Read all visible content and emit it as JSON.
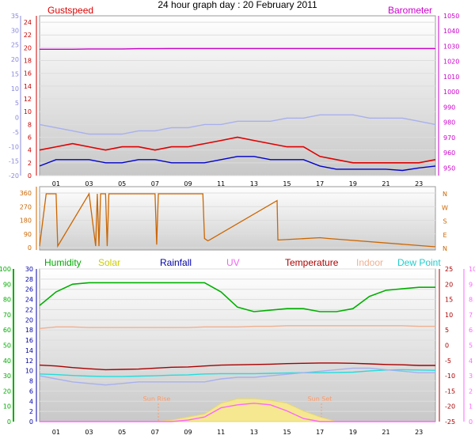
{
  "header": {
    "title": "24 hour graph day : 20 February 2011"
  },
  "chart_data": [
    {
      "type": "line",
      "title": "",
      "xlabel": "",
      "x_ticks": [
        "01",
        "03",
        "05",
        "07",
        "09",
        "11",
        "13",
        "15",
        "17",
        "19",
        "21",
        "23"
      ],
      "hours": [
        0,
        1,
        2,
        3,
        4,
        5,
        6,
        7,
        8,
        9,
        10,
        11,
        12,
        13,
        14,
        15,
        16,
        17,
        18,
        19,
        20,
        21,
        22,
        23,
        24
      ],
      "legend": [
        "Gustspeed",
        "Barometer"
      ],
      "left_axis": {
        "ticks": [
          0,
          2,
          4,
          6,
          8,
          10,
          12,
          14,
          16,
          18,
          20,
          22,
          24
        ],
        "ylim": [
          0,
          25
        ]
      },
      "left_axis_secondary": {
        "ticks": [
          -20,
          -15,
          -10,
          -5,
          0,
          5,
          10,
          15,
          20,
          25,
          30,
          35
        ]
      },
      "right_axis": {
        "ticks": [
          950,
          960,
          970,
          980,
          990,
          1000,
          1010,
          1020,
          1030,
          1040,
          1050
        ],
        "ylim": [
          945,
          1050
        ]
      },
      "series": [
        {
          "name": "Gustspeed",
          "axis": "left",
          "color": "#e00000",
          "values": [
            4,
            4.5,
            5,
            4.5,
            4,
            4.5,
            4.5,
            4,
            4.5,
            4.5,
            5,
            5.5,
            6,
            5.5,
            5,
            4.5,
            4.5,
            3,
            2.5,
            2,
            2,
            2,
            2,
            2,
            2.5
          ]
        },
        {
          "name": "Wind speed",
          "axis": "left",
          "color": "#0000cc",
          "values": [
            1.5,
            2.5,
            2.5,
            2.5,
            2,
            2,
            2.5,
            2.5,
            2,
            2,
            2,
            2.5,
            3,
            3,
            2.5,
            2.5,
            2.5,
            1.5,
            1,
            1,
            1,
            1,
            0.8,
            1.2,
            1.5
          ]
        },
        {
          "name": "Barometer",
          "axis": "right",
          "color": "#cc00cc",
          "values": [
            1028,
            1028,
            1028,
            1028.2,
            1028.2,
            1028.2,
            1028.4,
            1028.4,
            1028.5,
            1028.5,
            1028.5,
            1028.5,
            1028.5,
            1028.5,
            1028.5,
            1028.5,
            1028.5,
            1028.5,
            1028.5,
            1028.5,
            1028.5,
            1028.5,
            1028.5,
            1028.5,
            1028.5
          ]
        },
        {
          "name": "Pale blue trace",
          "axis": "left",
          "color": "#a8b0ee",
          "values": [
            8,
            7.5,
            7,
            6.5,
            6.5,
            6.5,
            7,
            7,
            7.5,
            7.5,
            8,
            8,
            8.5,
            8.5,
            8.5,
            9,
            9,
            9.5,
            9.5,
            9.5,
            9,
            9,
            9,
            8.5,
            8
          ]
        }
      ]
    },
    {
      "type": "line",
      "title": "",
      "x_ticks": [
        "01",
        "03",
        "05",
        "07",
        "09",
        "11",
        "13",
        "15",
        "17",
        "19",
        "21",
        "23"
      ],
      "hours": [
        0,
        0.4,
        0.5,
        1,
        1.1,
        3,
        3.4,
        3.5,
        3.6,
        3.7,
        4,
        4.1,
        4.2,
        7,
        7.1,
        7.2,
        9.9,
        10,
        10.2,
        10.3,
        14.4,
        14.45,
        14.5,
        17,
        17.5,
        24
      ],
      "left_axis": {
        "ticks": [
          0,
          90,
          180,
          270,
          360
        ],
        "ylim": [
          0,
          360
        ]
      },
      "right_axis": {
        "ticks": [
          "N",
          "W",
          "S",
          "E",
          "N"
        ]
      },
      "series": [
        {
          "name": "Wind direction",
          "color": "#cc6600",
          "values": [
            10,
            355,
            355,
            355,
            10,
            355,
            10,
            355,
            10,
            355,
            355,
            10,
            355,
            355,
            20,
            355,
            355,
            60,
            45,
            50,
            310,
            50,
            50,
            65,
            60,
            5
          ]
        }
      ]
    },
    {
      "type": "line",
      "title": "",
      "x_ticks": [
        "01",
        "03",
        "05",
        "07",
        "09",
        "11",
        "13",
        "15",
        "17",
        "19",
        "21",
        "23"
      ],
      "hours": [
        0,
        1,
        2,
        3,
        4,
        5,
        6,
        7,
        8,
        9,
        10,
        11,
        12,
        13,
        14,
        15,
        16,
        17,
        18,
        19,
        20,
        21,
        22,
        23,
        24
      ],
      "legend": [
        "Humidity",
        "Solar",
        "Rainfall",
        "UV",
        "Temperature",
        "Indoor",
        "Dew Point"
      ],
      "annotations": [
        "Sun Rise",
        "Sun Set"
      ],
      "axis_humidity": {
        "ticks": [
          0,
          10,
          20,
          30,
          40,
          50,
          60,
          70,
          80,
          90,
          100
        ],
        "ylim": [
          0,
          100
        ]
      },
      "axis_rainfall": {
        "ticks": [
          0,
          2,
          4,
          6,
          8,
          10,
          12,
          14,
          16,
          18,
          20,
          22,
          24,
          26,
          28,
          30
        ],
        "ylim": [
          0,
          30
        ]
      },
      "axis_temperature": {
        "ticks": [
          -25,
          -20,
          -15,
          -10,
          -5,
          0,
          5,
          10,
          15,
          20,
          25
        ],
        "ylim": [
          -25,
          25
        ]
      },
      "axis_uv": {
        "ticks": [
          0,
          1,
          2,
          3,
          4,
          5,
          6,
          7,
          8,
          9,
          10
        ],
        "ylim": [
          0,
          10
        ]
      },
      "series": [
        {
          "name": "Humidity",
          "axis": "humidity",
          "color": "#00b000",
          "values": [
            76,
            85,
            90,
            91,
            91,
            91,
            91,
            91,
            91,
            91,
            91,
            85,
            75,
            72,
            73,
            74,
            74,
            72,
            72,
            74,
            82,
            86,
            87,
            88,
            88
          ]
        },
        {
          "name": "Indoor",
          "axis": "temperature",
          "color": "#f0b090",
          "values": [
            5.5,
            6,
            6,
            5.8,
            5.8,
            5.8,
            5.8,
            5.8,
            5.8,
            5.8,
            6,
            6,
            6,
            6.2,
            6.2,
            6.4,
            6.4,
            6.4,
            6.4,
            6.4,
            6.4,
            6.4,
            6.4,
            6.2,
            6.2
          ]
        },
        {
          "name": "Temperature",
          "axis": "temperature",
          "color": "#aa0000",
          "values": [
            -6.5,
            -6.8,
            -7.3,
            -7.7,
            -8,
            -7.9,
            -7.8,
            -7.5,
            -7.2,
            -7.1,
            -6.8,
            -6.5,
            -6.4,
            -6.3,
            -6.2,
            -6,
            -5.9,
            -5.8,
            -5.8,
            -5.9,
            -6.1,
            -6.3,
            -6.4,
            -6.6,
            -6.6
          ]
        },
        {
          "name": "Dew Point",
          "axis": "temperature",
          "color": "#22dddd",
          "values": [
            -9.4,
            -9.6,
            -9.9,
            -10.1,
            -10.2,
            -10.2,
            -10.1,
            -10,
            -9.8,
            -9.7,
            -9.4,
            -9.3,
            -9.3,
            -9.3,
            -9.2,
            -9.1,
            -9,
            -9,
            -8.9,
            -8.8,
            -8.4,
            -8.1,
            -8,
            -8.1,
            -8.2
          ]
        },
        {
          "name": "Pale blue trace",
          "axis": "temperature",
          "color": "#a8b0ee",
          "values": [
            -10,
            -11,
            -12,
            -12.5,
            -13,
            -12.5,
            -12,
            -12,
            -12,
            -12,
            -12,
            -11,
            -10.5,
            -10.5,
            -10,
            -9.5,
            -9,
            -8.5,
            -8,
            -7.5,
            -7.5,
            -8,
            -8.5,
            -9,
            -9
          ]
        },
        {
          "name": "Solar",
          "axis": "humidity",
          "color": "#f5e890",
          "values": [
            0,
            0,
            0,
            0,
            0,
            0,
            0,
            0,
            1,
            3,
            5,
            12,
            15,
            15,
            14,
            12,
            7,
            3,
            0,
            0,
            0,
            0,
            0,
            0,
            0
          ]
        },
        {
          "name": "UV",
          "axis": "uv",
          "color": "#ff66ff",
          "values": [
            0,
            0,
            0,
            0,
            0,
            0,
            0,
            0,
            0,
            0.1,
            0.3,
            0.9,
            1.1,
            1.2,
            1.1,
            0.7,
            0.2,
            0,
            0,
            0,
            0,
            0,
            0,
            0,
            0
          ]
        }
      ]
    }
  ]
}
